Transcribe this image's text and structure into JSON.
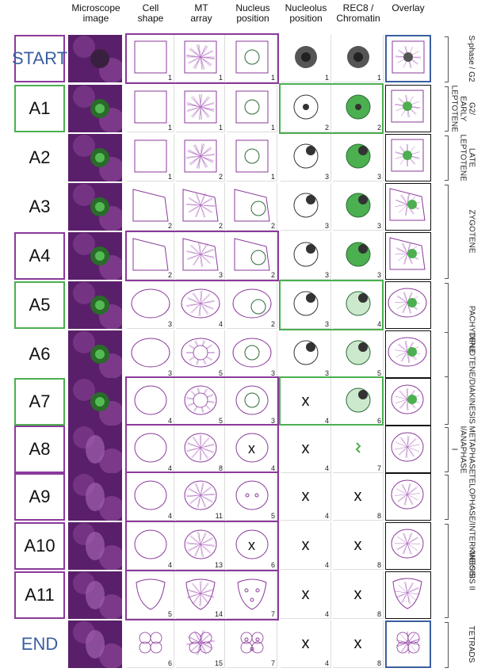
{
  "headers": {
    "micro": "Microscope\nimage",
    "cellshape": "Cell\nshape",
    "mt": "MT\narray",
    "nucpos": "Nucleus\nposition",
    "nucleolus": "Nucleolus\nposition",
    "rec8": "REC8 /\nChromatin",
    "overlay": "Overlay"
  },
  "rows": [
    {
      "label": "START",
      "nums": [
        "1",
        "1",
        "1",
        "1",
        "1"
      ],
      "box": "purple",
      "start": true
    },
    {
      "label": "A1",
      "nums": [
        "1",
        "1",
        "1",
        "2",
        "2"
      ],
      "box": "green"
    },
    {
      "label": "A2",
      "nums": [
        "1",
        "2",
        "1",
        "3",
        "3"
      ],
      "box": "none"
    },
    {
      "label": "A3",
      "nums": [
        "2",
        "2",
        "2",
        "3",
        "3"
      ],
      "box": "none"
    },
    {
      "label": "A4",
      "nums": [
        "2",
        "3",
        "2",
        "3",
        "3"
      ],
      "box": "purple"
    },
    {
      "label": "A5",
      "nums": [
        "3",
        "4",
        "2",
        "3",
        "4"
      ],
      "box": "green"
    },
    {
      "label": "A6",
      "nums": [
        "3",
        "5",
        "3",
        "3",
        "5"
      ],
      "box": "none"
    },
    {
      "label": "A7",
      "nums": [
        "4",
        "5",
        "3",
        "4",
        "6"
      ],
      "box": "green"
    },
    {
      "label": "A8",
      "nums": [
        "4",
        "8",
        "4",
        "4",
        "7"
      ],
      "box": "purple"
    },
    {
      "label": "A9",
      "nums": [
        "4",
        "11",
        "5",
        "4",
        "8"
      ],
      "box": "purple"
    },
    {
      "label": "A10",
      "nums": [
        "4",
        "13",
        "6",
        "4",
        "8"
      ],
      "box": "purple"
    },
    {
      "label": "A11",
      "nums": [
        "5",
        "14",
        "7",
        "4",
        "8"
      ],
      "box": "purple"
    },
    {
      "label": "END",
      "nums": [
        "6",
        "15",
        "7",
        "4",
        "8"
      ],
      "box": "none",
      "start": true
    }
  ],
  "x_mark": "x",
  "stages": [
    {
      "text": "S-phase / G2"
    },
    {
      "text": "G2/\nEARLY\nLEPTOTENE"
    },
    {
      "text": "LATE\nLEPTOTENE"
    },
    {
      "text": "ZYGOTENE"
    },
    {
      "text": "PACHYTENE"
    },
    {
      "text": "DIPLOTENE/DIAKINESIS"
    },
    {
      "text": "METAPHASE I/ANAPHASE I"
    },
    {
      "text": "TELOPHASE/INTERKINESIS"
    },
    {
      "text": "MEIOSIS II"
    },
    {
      "text": "TETRADS"
    }
  ],
  "colors": {
    "purple": "#8b3a9b",
    "green": "#4caf50",
    "blue": "#3a5fa0",
    "dark": "#444",
    "line": "#b06ac0"
  }
}
